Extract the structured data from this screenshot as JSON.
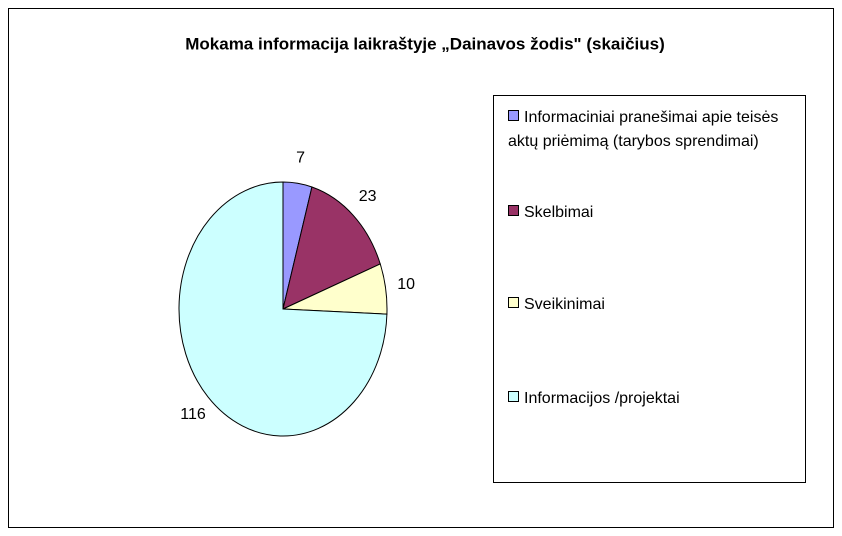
{
  "chart_data": {
    "type": "pie",
    "title": "Mokama informacija laikraštyje „Dainavos žodis\" (skaičius)",
    "categories": [
      "Informaciniai pranešimai apie teisės aktų priėmimą (tarybos sprendimai)",
      "Skelbimai",
      "Sveikinimai",
      "Informacijos /projektai"
    ],
    "values": [
      7,
      23,
      10,
      116
    ],
    "colors": [
      "#9999ff",
      "#993366",
      "#ffffcc",
      "#ccffff"
    ]
  }
}
